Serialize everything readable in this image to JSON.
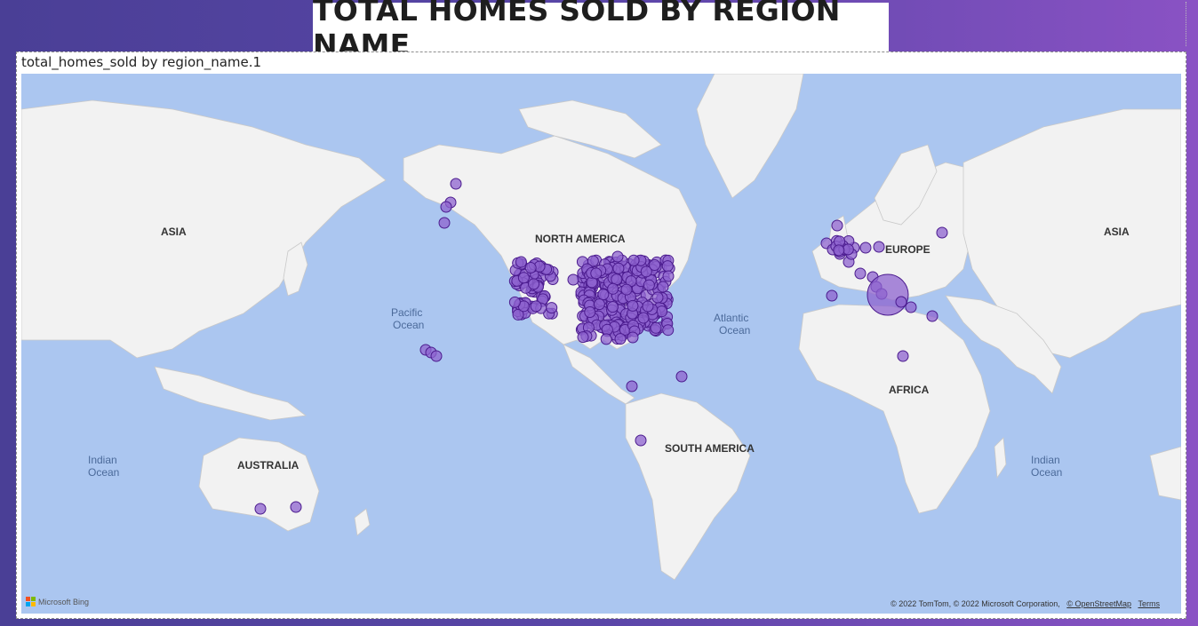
{
  "title": "TOTAL HOMES SOLD BY REGION NAME",
  "visual_title": "total_homes_sold by region_name.1",
  "map_labels": {
    "asia_west": "ASIA",
    "asia_east": "ASIA",
    "north_america": "NORTH AMERICA",
    "europe": "EUROPE",
    "africa": "AFRICA",
    "south_america": "SOUTH AMERICA",
    "australia": "AUSTRALIA",
    "pacific_1": "Pacific",
    "pacific_2": "Ocean",
    "atlantic_1": "Atlantic",
    "atlantic_2": "Ocean",
    "indian_w_1": "Indian",
    "indian_w_2": "Ocean",
    "indian_e_1": "Indian",
    "indian_e_2": "Ocean"
  },
  "bing_label": "Microsoft Bing",
  "attribution": "© 2022 TomTom, © 2022 Microsoft Corporation,",
  "attribution_osm": "© OpenStreetMap",
  "attribution_terms": "Terms",
  "colors": {
    "bubble_fill": "#8e63cf",
    "bubble_stroke": "#4b1b8e",
    "ocean": "#abc6f0",
    "land": "#f2f2f2"
  }
}
